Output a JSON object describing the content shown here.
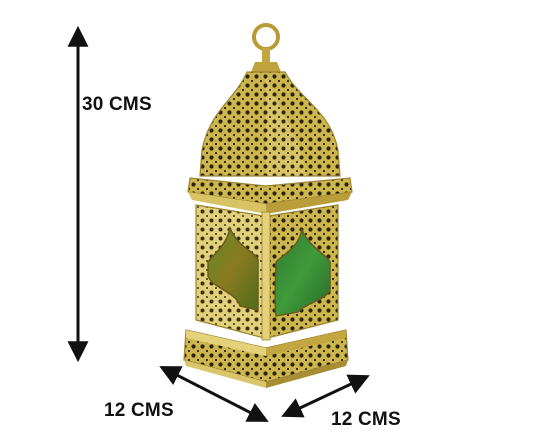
{
  "dimensions": {
    "height_label": "30 CMS",
    "width_label": "12 CMS",
    "depth_label": "12 CMS"
  },
  "colors": {
    "brass": "#c9b24a",
    "brass_light": "#e6d57a",
    "brass_dark": "#8c7420",
    "glass_green": "#3d8a2e",
    "glass_amber": "#8a7a20",
    "arrow": "#111111"
  }
}
